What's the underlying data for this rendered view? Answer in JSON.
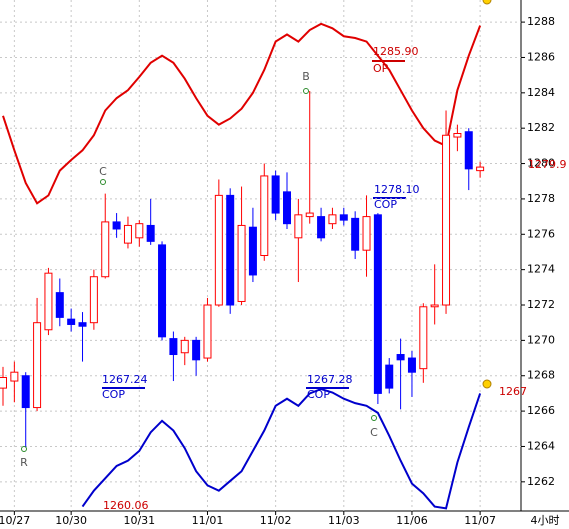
{
  "chart_data": {
    "type": "candlestick",
    "categories": [
      null,
      "10/27",
      null,
      null,
      null,
      null,
      "10/30",
      null,
      null,
      null,
      null,
      null,
      "10/31",
      null,
      null,
      null,
      null,
      null,
      "11/01",
      null,
      null,
      null,
      null,
      null,
      "11/02",
      null,
      null,
      null,
      null,
      null,
      "11/03",
      null,
      null,
      null,
      null,
      null,
      "11/06",
      null,
      null,
      null,
      null,
      null,
      "11/07"
    ],
    "x_label": "4小时",
    "open": [
      1267.3,
      1267.7,
      1268.0,
      1266.2,
      1270.6,
      1272.7,
      1271.2,
      1271.0,
      1271.0,
      1273.6,
      1276.7,
      1275.5,
      1275.8,
      1276.5,
      1275.4,
      1270.1,
      1269.3,
      1270.0,
      1269.0,
      1272.0,
      1278.2,
      1272.2,
      1276.4,
      1274.8,
      1279.3,
      1278.4,
      1275.8,
      1277.0,
      1277.0,
      1276.6,
      1277.1,
      1276.9,
      1275.1,
      1277.1,
      1268.6,
      1269.2,
      1269.0,
      1268.4,
      1271.9,
      1272.0,
      1281.5,
      1281.8,
      1279.6
    ],
    "high": [
      1268.5,
      1268.8,
      1268.2,
      1272.4,
      1274.1,
      1273.5,
      1271.8,
      1271.6,
      1274.0,
      1278.3,
      1277.2,
      1277.0,
      1276.8,
      1278.0,
      1275.6,
      1270.5,
      1270.2,
      1270.2,
      1272.4,
      1279.1,
      1278.6,
      1278.7,
      1277.5,
      1280.0,
      1279.6,
      1279.5,
      1278.0,
      1284.1,
      1277.5,
      1277.5,
      1277.5,
      1277.3,
      1278.2,
      1277.2,
      1269.0,
      1270.1,
      1269.4,
      1272.1,
      1274.3,
      1283.0,
      1282.2,
      1282.0,
      1280.1
    ],
    "low": [
      1266.3,
      1266.5,
      1263.9,
      1266.0,
      1270.3,
      1270.8,
      1270.5,
      1268.8,
      1270.6,
      1273.5,
      1275.8,
      1275.2,
      1275.3,
      1275.4,
      1270.0,
      1267.7,
      1268.6,
      1268.0,
      1268.8,
      1271.9,
      1271.5,
      1272.0,
      1273.3,
      1274.5,
      1276.8,
      1276.3,
      1273.3,
      1276.6,
      1275.6,
      1276.3,
      1276.5,
      1274.6,
      1273.6,
      1266.4,
      1267.0,
      1266.1,
      1266.8,
      1267.6,
      1270.9,
      1271.5,
      1280.7,
      1278.5,
      1279.2
    ],
    "close": [
      1267.9,
      1268.2,
      1266.2,
      1271.0,
      1273.8,
      1271.3,
      1270.9,
      1270.8,
      1273.6,
      1276.7,
      1276.3,
      1276.5,
      1276.6,
      1275.6,
      1270.2,
      1269.2,
      1270.0,
      1268.9,
      1272.0,
      1278.2,
      1272.0,
      1276.5,
      1273.7,
      1279.3,
      1277.2,
      1276.6,
      1277.1,
      1277.2,
      1275.8,
      1277.1,
      1276.8,
      1275.1,
      1277.0,
      1267.0,
      1267.3,
      1268.9,
      1268.2,
      1271.9,
      1272.0,
      1281.6,
      1281.7,
      1279.7,
      1279.8
    ],
    "up_color": "#ff0000",
    "down_color": "#0000ff",
    "lines": [
      {
        "color": "#e00000",
        "values": [
          1282.7,
          1280.75,
          1278.9,
          1277.75,
          1278.2,
          1279.6,
          1280.2,
          1280.75,
          1281.6,
          1283.0,
          1283.7,
          1284.15,
          1284.9,
          1285.7,
          1286.1,
          1285.7,
          1284.8,
          1283.7,
          1282.7,
          1282.2,
          1282.55,
          1283.1,
          1284.0,
          1285.3,
          1286.9,
          1287.3,
          1286.9,
          1287.55,
          1287.9,
          1287.65,
          1287.2,
          1287.1,
          1286.9,
          1286.1,
          1285.3,
          1284.15,
          1283.0,
          1282.0,
          1281.3,
          1281.0,
          1284.15,
          1286.1,
          1287.8
        ]
      },
      {
        "color": "#0000cc",
        "values": [
          null,
          null,
          null,
          null,
          null,
          null,
          null,
          1260.6,
          1261.5,
          1262.2,
          1262.9,
          1263.2,
          1263.75,
          1264.8,
          1265.45,
          1264.9,
          1263.9,
          1262.6,
          1261.8,
          1261.5,
          1262.05,
          1262.6,
          1263.75,
          1264.9,
          1266.3,
          1266.7,
          1266.3,
          1267.0,
          1267.25,
          1267.05,
          1266.7,
          1266.45,
          1266.3,
          1265.9,
          1264.6,
          1263.2,
          1261.9,
          1261.35,
          1260.6,
          1260.5,
          1263.1,
          1265.1,
          1267.0
        ]
      }
    ],
    "annotations": [
      {
        "text": "1285.90",
        "color": "#cc0000"
      },
      {
        "text": "OP",
        "color": "#cc0000"
      },
      {
        "text": "1278.10",
        "color": "#0000cc"
      },
      {
        "text": "COP",
        "color": "#0000cc"
      },
      {
        "text": "1267.24",
        "color": "#0000cc"
      },
      {
        "text": "COP",
        "color": "#0000cc"
      },
      {
        "text": "1267.28",
        "color": "#0000cc"
      },
      {
        "text": "COP",
        "color": "#0000cc"
      },
      {
        "text": "1260.06",
        "color": "#cc0000"
      },
      {
        "text": "1267",
        "color": "#cc0000"
      },
      {
        "text": "1279.9",
        "color": "#cc0000"
      }
    ],
    "markers": [
      "C",
      "B",
      "R",
      "C"
    ],
    "ylim": [
      1260.35,
      1289.25
    ],
    "yticks": [
      1262,
      1264,
      1266,
      1268,
      1270,
      1272,
      1274,
      1276,
      1278,
      1280,
      1282,
      1284,
      1286,
      1288
    ],
    "grid": true
  }
}
